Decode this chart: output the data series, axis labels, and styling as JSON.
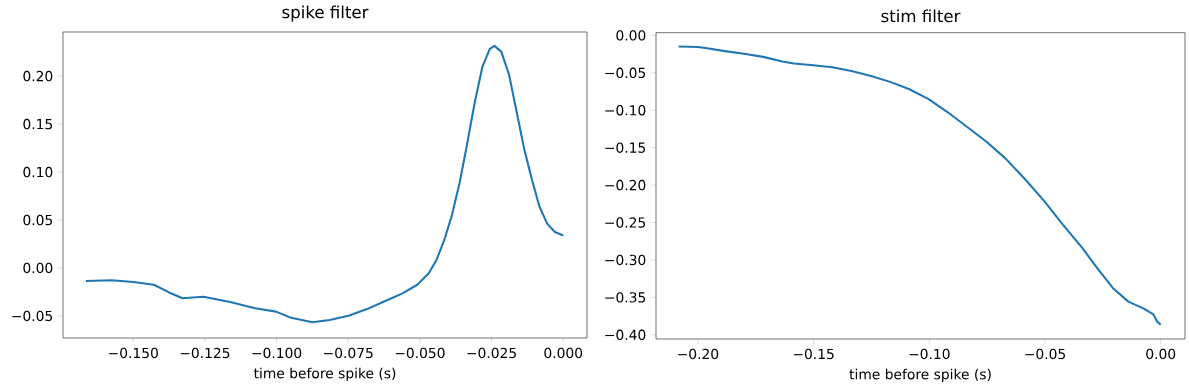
{
  "chart_data": [
    {
      "type": "line",
      "title": "spike filter",
      "xlabel": "time before spike (s)",
      "color": "#1f77b4",
      "x": [
        -0.1665,
        -0.1575,
        -0.15,
        -0.1428,
        -0.1375,
        -0.1328,
        -0.1255,
        -0.1162,
        -0.1075,
        -0.1002,
        -0.0949,
        -0.0875,
        -0.0815,
        -0.0749,
        -0.0682,
        -0.0629,
        -0.0562,
        -0.0509,
        -0.0469,
        -0.0442,
        -0.0416,
        -0.0389,
        -0.0362,
        -0.0336,
        -0.0309,
        -0.0282,
        -0.0256,
        -0.024,
        -0.0216,
        -0.0189,
        -0.0163,
        -0.0136,
        -0.0109,
        -0.0083,
        -0.0056,
        -0.0029,
        0.0
      ],
      "values": [
        -0.0135,
        -0.0128,
        -0.0147,
        -0.0175,
        -0.0255,
        -0.0315,
        -0.03,
        -0.0355,
        -0.042,
        -0.0455,
        -0.052,
        -0.0566,
        -0.0542,
        -0.0498,
        -0.0426,
        -0.0355,
        -0.0267,
        -0.0175,
        -0.0056,
        0.0084,
        0.0283,
        0.0542,
        0.088,
        0.128,
        0.172,
        0.2096,
        0.2283,
        0.2315,
        0.2255,
        0.2016,
        0.1637,
        0.1239,
        0.092,
        0.0641,
        0.0462,
        0.0375,
        0.0339
      ],
      "xlim": [
        -0.1745,
        0.0083
      ],
      "ylim": [
        -0.073,
        0.246
      ],
      "xticks": [
        {
          "value": -0.15,
          "label": "−0.150"
        },
        {
          "value": -0.125,
          "label": "−0.125"
        },
        {
          "value": -0.1,
          "label": "−0.100"
        },
        {
          "value": -0.075,
          "label": "−0.075"
        },
        {
          "value": -0.05,
          "label": "−0.050"
        },
        {
          "value": -0.025,
          "label": "−0.025"
        },
        {
          "value": 0,
          "label": "0.000"
        }
      ],
      "yticks": [
        {
          "value": -0.05,
          "label": "−0.05"
        },
        {
          "value": 0,
          "label": "0.00"
        },
        {
          "value": 0.05,
          "label": "0.05"
        },
        {
          "value": 0.1,
          "label": "0.10"
        },
        {
          "value": 0.15,
          "label": "0.15"
        },
        {
          "value": 0.2,
          "label": "0.20"
        }
      ]
    },
    {
      "type": "line",
      "title": "stim filter",
      "xlabel": "time before spike (s)",
      "color": "#1f77b4",
      "x": [
        -0.2083,
        -0.2,
        -0.1967,
        -0.1884,
        -0.1801,
        -0.1718,
        -0.1635,
        -0.1585,
        -0.1502,
        -0.1419,
        -0.1336,
        -0.1252,
        -0.1169,
        -0.1086,
        -0.1003,
        -0.092,
        -0.0837,
        -0.0754,
        -0.0671,
        -0.0588,
        -0.0505,
        -0.0422,
        -0.0339,
        -0.0272,
        -0.0206,
        -0.014,
        -0.0073,
        -0.0032,
        -0.0015,
        0.0
      ],
      "values": [
        -0.0149,
        -0.0154,
        -0.0169,
        -0.021,
        -0.0246,
        -0.0287,
        -0.0349,
        -0.0375,
        -0.04,
        -0.0426,
        -0.0477,
        -0.0544,
        -0.0621,
        -0.0719,
        -0.0852,
        -0.1027,
        -0.1222,
        -0.1417,
        -0.1643,
        -0.1915,
        -0.2207,
        -0.2531,
        -0.2839,
        -0.312,
        -0.3377,
        -0.3557,
        -0.365,
        -0.3727,
        -0.3824,
        -0.3865
      ],
      "xlim": [
        -0.2181,
        0.0105
      ],
      "ylim": [
        -0.4056,
        0.0036
      ],
      "xticks": [
        {
          "value": -0.2,
          "label": "−0.20"
        },
        {
          "value": -0.15,
          "label": "−0.15"
        },
        {
          "value": -0.1,
          "label": "−0.10"
        },
        {
          "value": -0.05,
          "label": "−0.05"
        },
        {
          "value": 0,
          "label": "0.00"
        }
      ],
      "yticks": [
        {
          "value": 0,
          "label": "0.00"
        },
        {
          "value": -0.05,
          "label": "−0.05"
        },
        {
          "value": -0.1,
          "label": "−0.10"
        },
        {
          "value": -0.15,
          "label": "−0.15"
        },
        {
          "value": -0.2,
          "label": "−0.20"
        },
        {
          "value": -0.25,
          "label": "−0.25"
        },
        {
          "value": -0.3,
          "label": "−0.30"
        },
        {
          "value": -0.35,
          "label": "−0.35"
        },
        {
          "value": -0.4,
          "label": "−0.40"
        }
      ]
    }
  ]
}
